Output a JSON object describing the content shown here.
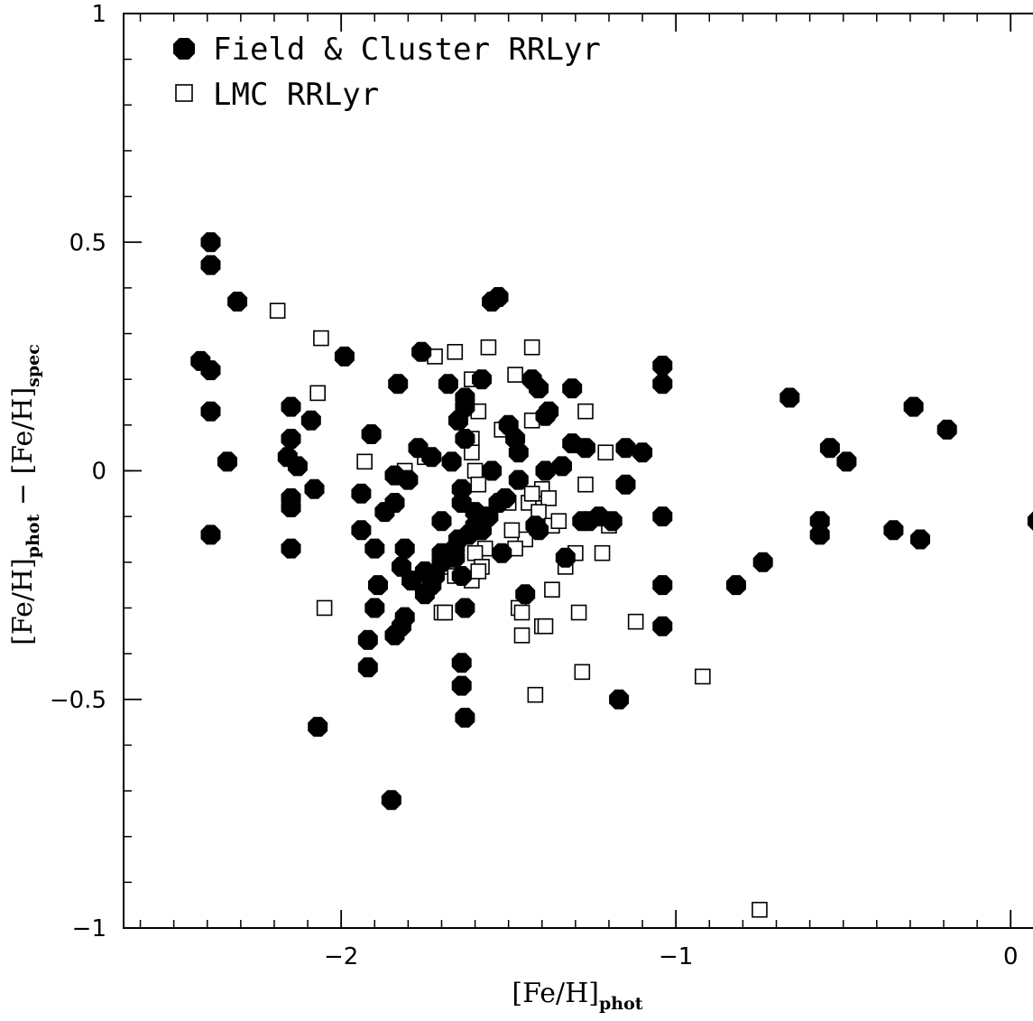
{
  "chart_data": {
    "type": "scatter",
    "title": "",
    "xlabel": {
      "main": "[Fe/H]",
      "sub": "phot"
    },
    "ylabel": {
      "main1": "[Fe/H]",
      "sub1": "phot",
      "mid": " − ",
      "main2": "[Fe/H]",
      "sub2": "spec"
    },
    "xlim": [
      -2.65,
      0.18
    ],
    "ylim": [
      -1.0,
      1.0
    ],
    "x_ticks": [
      {
        "value": -2,
        "label": "−2"
      },
      {
        "value": -1,
        "label": "−1"
      },
      {
        "value": 0,
        "label": "0"
      }
    ],
    "y_ticks": [
      {
        "value": -1,
        "label": "−1"
      },
      {
        "value": -0.5,
        "label": "−0.5"
      },
      {
        "value": 0,
        "label": "0"
      },
      {
        "value": 0.5,
        "label": "0.5"
      },
      {
        "value": 1,
        "label": "1"
      }
    ],
    "x_minor_step": 0.1,
    "y_minor_step": 0.1,
    "grid": false,
    "legend_placement": "top-left",
    "series": [
      {
        "name": "Field & Cluster RRLyr",
        "marker": "filled-octagon",
        "color": "#000000",
        "points": [
          [
            -2.39,
            0.5
          ],
          [
            -2.39,
            0.45
          ],
          [
            -2.31,
            0.37
          ],
          [
            -2.42,
            0.24
          ],
          [
            -2.39,
            0.22
          ],
          [
            -2.39,
            0.13
          ],
          [
            -2.34,
            0.02
          ],
          [
            -2.39,
            -0.14
          ],
          [
            -1.99,
            0.25
          ],
          [
            -2.15,
            0.14
          ],
          [
            -2.09,
            0.11
          ],
          [
            -2.16,
            0.03
          ],
          [
            -2.15,
            0.07
          ],
          [
            -2.13,
            0.01
          ],
          [
            -2.08,
            -0.04
          ],
          [
            -2.15,
            -0.06
          ],
          [
            -2.15,
            -0.08
          ],
          [
            -2.15,
            -0.17
          ],
          [
            -2.07,
            -0.56
          ],
          [
            -1.94,
            -0.05
          ],
          [
            -1.94,
            -0.13
          ],
          [
            -1.91,
            0.08
          ],
          [
            -1.9,
            -0.17
          ],
          [
            -1.89,
            -0.25
          ],
          [
            -1.9,
            -0.3
          ],
          [
            -1.92,
            -0.37
          ],
          [
            -1.92,
            -0.43
          ],
          [
            -1.87,
            -0.09
          ],
          [
            -1.84,
            -0.01
          ],
          [
            -1.83,
            0.19
          ],
          [
            -1.84,
            -0.07
          ],
          [
            -1.81,
            -0.17
          ],
          [
            -1.82,
            -0.21
          ],
          [
            -1.81,
            -0.32
          ],
          [
            -1.82,
            -0.34
          ],
          [
            -1.84,
            -0.36
          ],
          [
            -1.79,
            -0.24
          ],
          [
            -1.8,
            -0.02
          ],
          [
            -1.77,
            0.05
          ],
          [
            -1.76,
            0.26
          ],
          [
            -1.73,
            0.03
          ],
          [
            -1.7,
            -0.11
          ],
          [
            -1.67,
            0.02
          ],
          [
            -1.75,
            -0.22
          ],
          [
            -1.75,
            -0.27
          ],
          [
            -1.73,
            -0.25
          ],
          [
            -1.7,
            -0.18
          ],
          [
            -1.68,
            0.19
          ],
          [
            -1.65,
            0.11
          ],
          [
            -1.63,
            0.16
          ],
          [
            -1.63,
            0.14
          ],
          [
            -1.63,
            0.07
          ],
          [
            -1.64,
            -0.04
          ],
          [
            -1.64,
            -0.07
          ],
          [
            -1.65,
            -0.15
          ],
          [
            -1.64,
            -0.23
          ],
          [
            -1.63,
            -0.3
          ],
          [
            -1.64,
            -0.42
          ],
          [
            -1.64,
            -0.47
          ],
          [
            -1.63,
            -0.54
          ],
          [
            -1.58,
            0.2
          ],
          [
            -1.55,
            0.37
          ],
          [
            -1.53,
            0.38
          ],
          [
            -1.6,
            -0.09
          ],
          [
            -1.58,
            -0.13
          ],
          [
            -1.56,
            -0.1
          ],
          [
            -1.53,
            -0.07
          ],
          [
            -1.51,
            -0.06
          ],
          [
            -1.55,
            0.0
          ],
          [
            -1.52,
            -0.18
          ],
          [
            -1.5,
            0.1
          ],
          [
            -1.48,
            0.07
          ],
          [
            -1.47,
            0.04
          ],
          [
            -1.47,
            -0.02
          ],
          [
            -1.45,
            -0.27
          ],
          [
            -1.43,
            0.2
          ],
          [
            -1.41,
            0.18
          ],
          [
            -1.39,
            0.12
          ],
          [
            -1.38,
            0.13
          ],
          [
            -1.39,
            0.0
          ],
          [
            -1.41,
            -0.13
          ],
          [
            -1.42,
            -0.12
          ],
          [
            -1.34,
            0.01
          ],
          [
            -1.31,
            0.18
          ],
          [
            -1.31,
            0.06
          ],
          [
            -1.27,
            0.05
          ],
          [
            -1.33,
            -0.19
          ],
          [
            -1.26,
            -0.11
          ],
          [
            -1.28,
            -0.11
          ],
          [
            -1.23,
            -0.1
          ],
          [
            -1.19,
            -0.11
          ],
          [
            -1.15,
            0.05
          ],
          [
            -1.15,
            -0.03
          ],
          [
            -1.17,
            -0.5
          ],
          [
            -1.1,
            0.04
          ],
          [
            -1.04,
            0.23
          ],
          [
            -1.04,
            0.19
          ],
          [
            -1.04,
            -0.1
          ],
          [
            -1.04,
            -0.25
          ],
          [
            -1.04,
            -0.34
          ],
          [
            -0.82,
            -0.25
          ],
          [
            -0.74,
            -0.2
          ],
          [
            -0.66,
            0.16
          ],
          [
            -0.57,
            -0.11
          ],
          [
            -0.57,
            -0.14
          ],
          [
            -0.54,
            0.05
          ],
          [
            -0.49,
            0.02
          ],
          [
            -0.35,
            -0.13
          ],
          [
            -0.29,
            0.14
          ],
          [
            -0.27,
            -0.15
          ],
          [
            -0.19,
            0.09
          ],
          [
            0.08,
            -0.11
          ],
          [
            -1.85,
            -0.72
          ],
          [
            -1.7,
            -0.2
          ],
          [
            -1.66,
            -0.17
          ],
          [
            -1.62,
            -0.14
          ],
          [
            -1.6,
            -0.12
          ],
          [
            -1.58,
            -0.1
          ],
          [
            -1.66,
            -0.19
          ],
          [
            -1.72,
            -0.23
          ]
        ]
      },
      {
        "name": "LMC RRLyr",
        "marker": "open-square",
        "color": "#000000",
        "points": [
          [
            -2.19,
            0.35
          ],
          [
            -2.06,
            0.29
          ],
          [
            -2.07,
            0.17
          ],
          [
            -1.93,
            0.02
          ],
          [
            -2.05,
            -0.3
          ],
          [
            -1.81,
            0.0
          ],
          [
            -1.75,
            0.03
          ],
          [
            -1.72,
            0.25
          ],
          [
            -1.66,
            0.26
          ],
          [
            -1.61,
            0.2
          ],
          [
            -1.59,
            0.13
          ],
          [
            -1.56,
            0.27
          ],
          [
            -1.52,
            0.09
          ],
          [
            -1.48,
            0.21
          ],
          [
            -1.43,
            0.27
          ],
          [
            -1.43,
            0.11
          ],
          [
            -1.61,
            0.07
          ],
          [
            -1.61,
            0.04
          ],
          [
            -1.6,
            0.0
          ],
          [
            -1.59,
            -0.03
          ],
          [
            -1.5,
            -0.07
          ],
          [
            -1.44,
            -0.07
          ],
          [
            -1.42,
            -0.05
          ],
          [
            -1.4,
            -0.04
          ],
          [
            -1.38,
            -0.06
          ],
          [
            -1.41,
            -0.09
          ],
          [
            -1.37,
            -0.12
          ],
          [
            -1.45,
            -0.15
          ],
          [
            -1.48,
            -0.17
          ],
          [
            -1.49,
            -0.13
          ],
          [
            -1.57,
            -0.17
          ],
          [
            -1.6,
            -0.18
          ],
          [
            -1.58,
            -0.21
          ],
          [
            -1.61,
            -0.24
          ],
          [
            -1.59,
            -0.22
          ],
          [
            -1.68,
            -0.21
          ],
          [
            -1.66,
            -0.23
          ],
          [
            -1.7,
            -0.31
          ],
          [
            -1.69,
            -0.31
          ],
          [
            -1.47,
            -0.3
          ],
          [
            -1.46,
            -0.31
          ],
          [
            -1.46,
            -0.36
          ],
          [
            -1.4,
            -0.34
          ],
          [
            -1.39,
            -0.34
          ],
          [
            -1.37,
            -0.26
          ],
          [
            -1.33,
            -0.21
          ],
          [
            -1.3,
            -0.18
          ],
          [
            -1.29,
            -0.31
          ],
          [
            -1.27,
            -0.03
          ],
          [
            -1.27,
            0.13
          ],
          [
            -1.21,
            0.04
          ],
          [
            -1.2,
            -0.12
          ],
          [
            -1.22,
            -0.18
          ],
          [
            -1.12,
            -0.33
          ],
          [
            -1.28,
            -0.44
          ],
          [
            -1.42,
            -0.49
          ],
          [
            -0.92,
            -0.45
          ],
          [
            -0.75,
            -0.96
          ],
          [
            -1.43,
            -0.05
          ],
          [
            -1.35,
            -0.11
          ]
        ]
      }
    ]
  }
}
